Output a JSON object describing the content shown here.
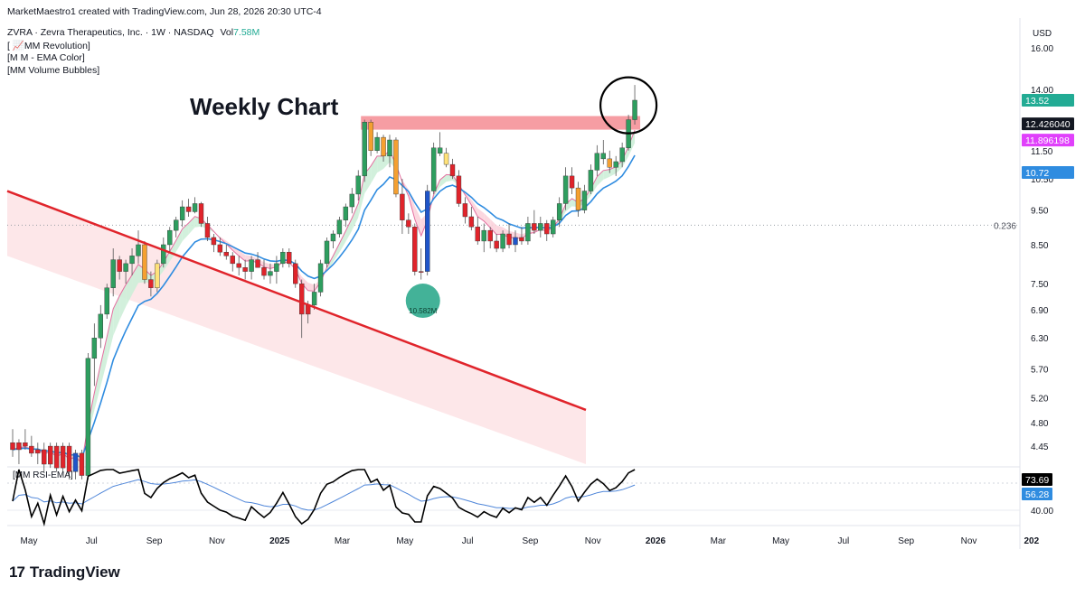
{
  "header": {
    "credit": "MarketMaestro1 created with TradingView.com, Jun 28, 2026 20:30 UTC-4",
    "symbol_line": "ZVRA · Zevra Therapeutics, Inc. · 1W · NASDAQ",
    "volume_label": "Vol",
    "volume_value": "7.58M",
    "indicators": [
      "[ 📈MM Revolution]",
      "[M M - EMA Color]",
      "[MM Volume Bubbles]"
    ]
  },
  "currency": "USD",
  "annotation_title": "Weekly Chart",
  "rsi_label": "[MM RSI-EMA]",
  "brand": {
    "logo": "17",
    "name": "TradingView"
  },
  "colors": {
    "bull": "#2e9e5f",
    "bear": "#e0242b",
    "orange": "#f5a030",
    "blue": "#1f55c9",
    "yellow": "#ffe27a",
    "ema_fast": "#e46fa0",
    "ema_slow": "#2f8ce0",
    "resistance": "#f4848c",
    "trendline": "#e0242b",
    "channel": "#fde3e5",
    "bubble": "#22a586",
    "rsi": "#000000",
    "rsi_ema": "#4f86d9",
    "price_up": "#22ab94",
    "price_dark": "#131722",
    "price_magenta": "#e040fb",
    "price_blue": "#2f8ce0"
  },
  "chart_data": {
    "type": "candlestick",
    "price_axis_ticks": [
      "16.00",
      "14.00",
      "11.50",
      "10.50",
      "9.50",
      "8.50",
      "7.50",
      "6.90",
      "6.30",
      "5.70",
      "5.20",
      "4.80",
      "4.45"
    ],
    "time_axis_labels": [
      "May",
      "Jul",
      "Sep",
      "Nov",
      "2025",
      "Mar",
      "May",
      "Jul",
      "Sep",
      "Nov",
      "2026",
      "Mar",
      "May",
      "Jul",
      "Sep",
      "Nov",
      "202"
    ],
    "price_labels": {
      "last_close": "13.52",
      "ema_value_1": "12.426040",
      "ema_value_2": "11.896198",
      "ema_value_3": "10.72"
    },
    "fib_level": {
      "label": "0.236",
      "price": 9.05
    },
    "resistance_zone": {
      "low": 12.3,
      "high": 12.85
    },
    "volume_bubble": {
      "label": "10.582M"
    },
    "rsi_axis_ticks": [
      "40.00"
    ],
    "rsi_labels": {
      "rsi": "73.69",
      "ema": "56.28"
    },
    "candles": [
      [
        4.5,
        4.7,
        4.3,
        4.4
      ],
      [
        4.4,
        4.55,
        4.2,
        4.5
      ],
      [
        4.5,
        4.7,
        4.4,
        4.45
      ],
      [
        4.45,
        4.6,
        4.3,
        4.35
      ],
      [
        4.35,
        4.5,
        4.2,
        4.4
      ],
      [
        4.4,
        4.5,
        4.1,
        4.2
      ],
      [
        4.2,
        4.5,
        4.15,
        4.45
      ],
      [
        4.45,
        4.5,
        4.1,
        4.15
      ],
      [
        4.15,
        4.5,
        4.1,
        4.45
      ],
      [
        4.45,
        4.5,
        4.0,
        4.1
      ],
      [
        4.1,
        4.4,
        4.0,
        4.35
      ],
      [
        4.35,
        4.4,
        4.0,
        4.05
      ],
      [
        4.05,
        6.0,
        4.0,
        5.9
      ],
      [
        5.9,
        6.6,
        5.4,
        6.3
      ],
      [
        6.3,
        7.0,
        6.1,
        6.8
      ],
      [
        6.8,
        7.5,
        6.7,
        7.4
      ],
      [
        7.4,
        8.4,
        7.2,
        8.1
      ],
      [
        8.1,
        8.2,
        7.6,
        7.8
      ],
      [
        7.8,
        8.1,
        7.5,
        8.0
      ],
      [
        8.0,
        8.4,
        7.7,
        8.2
      ],
      [
        8.2,
        8.9,
        8.0,
        8.5
      ],
      [
        8.5,
        8.6,
        7.5,
        7.6
      ],
      [
        7.6,
        7.8,
        7.2,
        7.4
      ],
      [
        7.4,
        8.1,
        7.3,
        8.0
      ],
      [
        8.0,
        8.7,
        7.9,
        8.5
      ],
      [
        8.5,
        9.0,
        8.3,
        8.9
      ],
      [
        8.9,
        9.3,
        8.7,
        9.2
      ],
      [
        9.2,
        9.8,
        9.0,
        9.6
      ],
      [
        9.6,
        9.85,
        9.3,
        9.45
      ],
      [
        9.45,
        9.9,
        9.4,
        9.7
      ],
      [
        9.7,
        9.75,
        9.0,
        9.1
      ],
      [
        9.1,
        9.3,
        8.6,
        8.7
      ],
      [
        8.7,
        8.8,
        8.3,
        8.5
      ],
      [
        8.5,
        8.7,
        8.2,
        8.3
      ],
      [
        8.3,
        8.5,
        8.1,
        8.2
      ],
      [
        8.2,
        8.3,
        7.8,
        8.0
      ],
      [
        8.0,
        8.2,
        7.7,
        7.9
      ],
      [
        7.9,
        8.1,
        7.6,
        7.8
      ],
      [
        7.8,
        8.2,
        7.6,
        8.1
      ],
      [
        8.1,
        8.3,
        7.9,
        7.9
      ],
      [
        7.9,
        8.1,
        7.6,
        7.7
      ],
      [
        7.7,
        8.0,
        7.5,
        7.8
      ],
      [
        7.8,
        8.2,
        7.5,
        8.0
      ],
      [
        8.0,
        8.4,
        7.9,
        8.3
      ],
      [
        8.3,
        8.4,
        7.9,
        8.0
      ],
      [
        8.0,
        8.1,
        7.4,
        7.5
      ],
      [
        7.5,
        7.6,
        6.3,
        6.8
      ],
      [
        6.8,
        7.1,
        6.6,
        7.0
      ],
      [
        7.0,
        7.5,
        6.9,
        7.3
      ],
      [
        7.3,
        8.1,
        7.2,
        8.0
      ],
      [
        8.0,
        8.7,
        7.9,
        8.6
      ],
      [
        8.6,
        8.9,
        8.4,
        8.8
      ],
      [
        8.8,
        9.3,
        8.7,
        9.2
      ],
      [
        9.2,
        9.7,
        9.0,
        9.6
      ],
      [
        9.6,
        10.2,
        9.4,
        10.0
      ],
      [
        10.0,
        10.8,
        9.8,
        10.6
      ],
      [
        10.6,
        12.7,
        10.4,
        12.6
      ],
      [
        12.6,
        12.7,
        11.3,
        11.5
      ],
      [
        11.5,
        12.2,
        11.4,
        12.0
      ],
      [
        12.0,
        12.1,
        11.1,
        11.3
      ],
      [
        11.3,
        12.1,
        10.9,
        11.9
      ],
      [
        11.9,
        12.0,
        9.9,
        10.0
      ],
      [
        10.0,
        10.5,
        8.8,
        9.2
      ],
      [
        9.2,
        9.4,
        8.8,
        9.0
      ],
      [
        9.0,
        9.1,
        7.7,
        7.8
      ],
      [
        7.8,
        8.4,
        7.6,
        7.8
      ],
      [
        7.8,
        10.3,
        7.7,
        10.1
      ],
      [
        10.1,
        11.8,
        10.0,
        11.6
      ],
      [
        11.6,
        12.2,
        11.3,
        11.4
      ],
      [
        11.4,
        11.6,
        10.9,
        11.0
      ],
      [
        11.0,
        11.2,
        10.5,
        10.6
      ],
      [
        10.6,
        10.8,
        9.6,
        9.7
      ],
      [
        9.7,
        9.9,
        9.1,
        9.3
      ],
      [
        9.3,
        9.6,
        8.9,
        9.0
      ],
      [
        9.0,
        9.3,
        8.5,
        8.6
      ],
      [
        8.6,
        9.1,
        8.3,
        8.9
      ],
      [
        8.9,
        9.0,
        8.4,
        8.6
      ],
      [
        8.6,
        8.8,
        8.3,
        8.4
      ],
      [
        8.4,
        8.9,
        8.3,
        8.8
      ],
      [
        8.8,
        9.1,
        8.4,
        8.5
      ],
      [
        8.5,
        8.9,
        8.3,
        8.7
      ],
      [
        8.7,
        9.0,
        8.5,
        8.6
      ],
      [
        8.6,
        9.3,
        8.5,
        9.1
      ],
      [
        9.1,
        9.5,
        8.8,
        8.9
      ],
      [
        8.9,
        9.3,
        8.7,
        9.1
      ],
      [
        9.1,
        9.2,
        8.6,
        8.8
      ],
      [
        8.8,
        9.3,
        8.7,
        9.2
      ],
      [
        9.2,
        9.9,
        9.0,
        9.7
      ],
      [
        9.7,
        10.9,
        9.5,
        10.6
      ],
      [
        10.6,
        10.9,
        10.0,
        10.2
      ],
      [
        10.2,
        10.4,
        9.3,
        9.5
      ],
      [
        9.5,
        10.3,
        9.4,
        10.1
      ],
      [
        10.1,
        11.0,
        10.0,
        10.8
      ],
      [
        10.8,
        11.7,
        10.6,
        11.4
      ],
      [
        11.4,
        11.9,
        11.0,
        11.2
      ],
      [
        11.2,
        11.5,
        10.7,
        10.9
      ],
      [
        10.9,
        11.3,
        10.6,
        11.1
      ],
      [
        11.1,
        11.8,
        10.9,
        11.6
      ],
      [
        11.6,
        12.9,
        11.5,
        12.7
      ],
      [
        12.7,
        14.2,
        12.5,
        13.52
      ]
    ],
    "candle_colors": [
      "r",
      "r",
      "r",
      "r",
      "r",
      "r",
      "r",
      "r",
      "r",
      "r",
      "b",
      "r",
      "g",
      "g",
      "g",
      "g",
      "g",
      "r",
      "g",
      "g",
      "g",
      "o",
      "r",
      "y",
      "g",
      "g",
      "g",
      "g",
      "r",
      "g",
      "r",
      "r",
      "r",
      "r",
      "r",
      "r",
      "r",
      "r",
      "g",
      "r",
      "r",
      "g",
      "g",
      "g",
      "r",
      "r",
      "r",
      "r",
      "g",
      "g",
      "g",
      "g",
      "g",
      "g",
      "g",
      "g",
      "g",
      "o",
      "g",
      "o",
      "g",
      "o",
      "r",
      "r",
      "r",
      "r",
      "b",
      "g",
      "g",
      "y",
      "r",
      "r",
      "r",
      "r",
      "r",
      "g",
      "r",
      "r",
      "g",
      "r",
      "b",
      "r",
      "g",
      "r",
      "g",
      "r",
      "g",
      "g",
      "g",
      "r",
      "o",
      "g",
      "g",
      "g",
      "g",
      "o",
      "g",
      "g",
      "g",
      "g"
    ]
  }
}
